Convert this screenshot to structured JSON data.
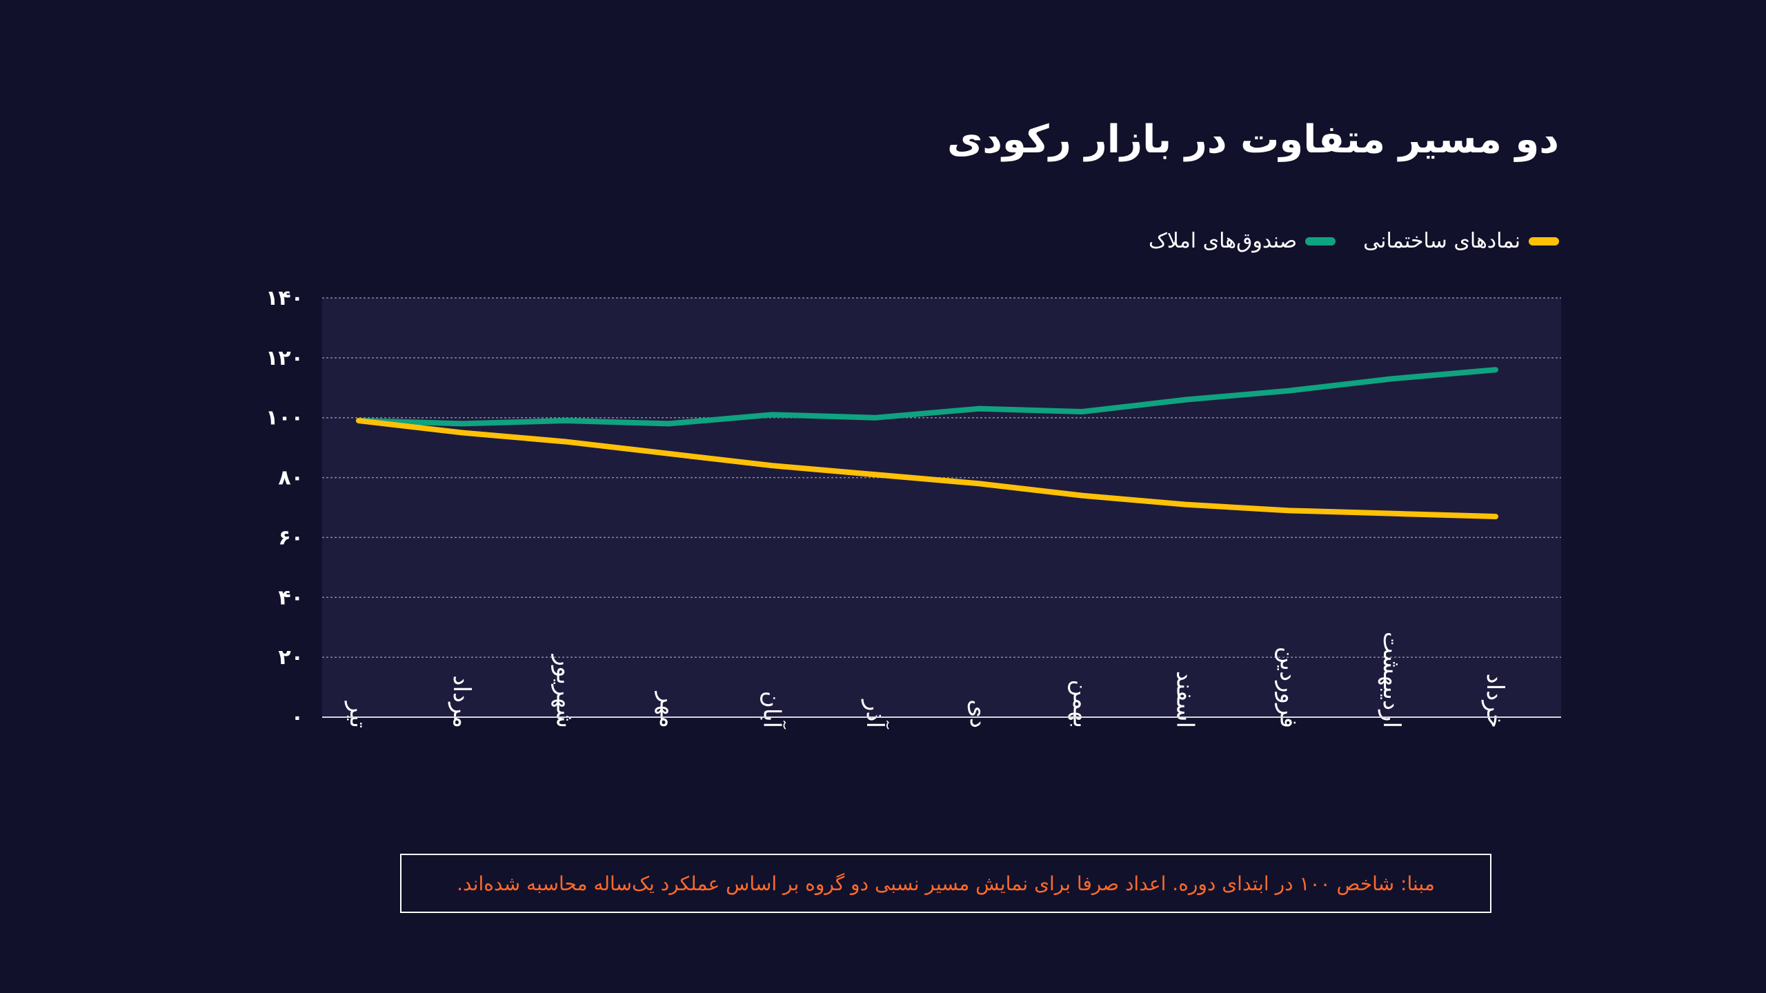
{
  "colors": {
    "background": "#12112b",
    "plot_area": "#1e1c3d",
    "grid": "#8a88a8",
    "axis": "#d8d8e0",
    "text": "#ffffff",
    "note_text": "#ff6a2b",
    "series_building": "#ffc107",
    "series_property_funds": "#0fa37f"
  },
  "title": "دو مسیر متفاوت در بازار رکودی",
  "note": "مبنا: شاخص ۱۰۰ در ابتدای دوره. اعداد صرفا برای نمایش مسیر نسبی دو گروه بر اساس عملکرد یک‌ساله محاسبه شده‌اند.",
  "chart_data": {
    "type": "line",
    "title": "دو مسیر متفاوت در بازار رکودی",
    "categories": [
      "تیر",
      "مرداد",
      "شهریور",
      "مهر",
      "آبان",
      "آذر",
      "دی",
      "بهمن",
      "اسفند",
      "فروردین",
      "اردیبهشت",
      "خرداد"
    ],
    "series": [
      {
        "name": "نمادهای ساختمانی",
        "color": "#ffc107",
        "values": [
          99,
          95,
          92,
          88,
          84,
          81,
          78,
          74,
          71,
          69,
          68,
          67
        ]
      },
      {
        "name": "صندوق‌های املاک",
        "color": "#0fa37f",
        "values": [
          99,
          98,
          99,
          98,
          101,
          100,
          103,
          102,
          106,
          109,
          113,
          116
        ]
      }
    ],
    "yticks": [
      "۰",
      "۲۰",
      "۴۰",
      "۶۰",
      "۸۰",
      "۱۰۰",
      "۱۲۰",
      "۱۴۰"
    ],
    "ylim": [
      0,
      140
    ],
    "grid": true,
    "legend_position": "top-right",
    "xlabel": "",
    "ylabel": ""
  }
}
